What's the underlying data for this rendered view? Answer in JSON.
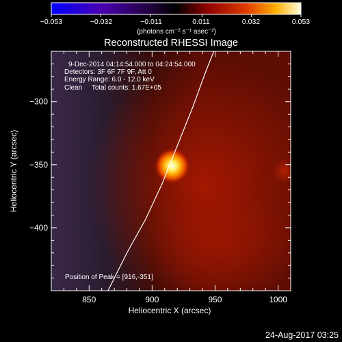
{
  "colorbar": {
    "tick_labels": [
      "−0.053",
      "−0.032",
      "−0.011",
      "0.011",
      "0.032",
      "0.053"
    ],
    "tick_values": [
      -0.053,
      -0.032,
      -0.011,
      0.011,
      0.032,
      0.053
    ],
    "range": [
      -0.053,
      0.053
    ],
    "unit_label": "(photons cm⁻² s⁻¹ asec⁻²)",
    "colors": [
      "#0000ff",
      "#4000a0",
      "#000000",
      "#800000",
      "#e03000",
      "#ffa000",
      "#ffffd0"
    ]
  },
  "chart_data": {
    "type": "heatmap",
    "title": "Reconstructed RHESSI Image",
    "xlabel": "Heliocentric X (arcsec)",
    "ylabel": "Heliocentric Y (arcsec)",
    "xlim": [
      820,
      1010
    ],
    "ylim": [
      -450,
      -260
    ],
    "x_ticks": [
      850,
      900,
      950,
      1000
    ],
    "x_tick_labels": [
      "850",
      "900",
      "950",
      "1000"
    ],
    "y_ticks": [
      -300,
      -350,
      -400
    ],
    "y_tick_labels": [
      "−300",
      "−350",
      "−400"
    ],
    "source_peak": {
      "x": 916,
      "y": -351,
      "value": 0.053
    },
    "secondary_source": {
      "x": 1005,
      "y": -355
    },
    "limb_curve": [
      [
        865,
        -450
      ],
      [
        880,
        -420
      ],
      [
        895,
        -393
      ],
      [
        908,
        -365
      ],
      [
        920,
        -335
      ],
      [
        932,
        -305
      ],
      [
        943,
        -275
      ],
      [
        949,
        -260
      ]
    ],
    "annotations": [
      "9-Dec-2014 04:14:54.000 to 04:24:54.000",
      "Detectors: 3F 6F 7F 9F, Att 0",
      "Energy Range: 6.0 - 12.0 keV",
      "Clean     Total counts: 1.67E+05",
      "Position of Peak = [916,-351]"
    ]
  },
  "footer": {
    "timestamp": "24-Aug-2017 03:25"
  }
}
